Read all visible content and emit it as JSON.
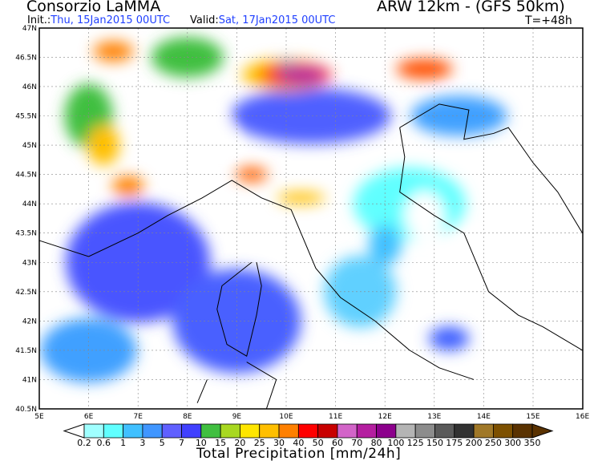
{
  "header": {
    "title": "Consorzio LaMMA",
    "model": "ARW 12km - (GFS 50km)",
    "init_label": "Init.:",
    "init_value": "Thu, 15Jan2015 00UTC",
    "valid_label": "Valid:",
    "valid_value": "Sat, 17Jan2015 00UTC",
    "timestep": "T=+48h"
  },
  "map": {
    "lon_ticks": [
      "5E",
      "6E",
      "7E",
      "8E",
      "9E",
      "10E",
      "11E",
      "12E",
      "13E",
      "14E",
      "15E",
      "16E"
    ],
    "lat_ticks": [
      "47N",
      "46.5N",
      "46N",
      "45.5N",
      "45N",
      "44.5N",
      "44N",
      "43.5N",
      "43N",
      "42.5N",
      "42N",
      "41.5N",
      "41N",
      "40.5N"
    ]
  },
  "colorbar": {
    "title": "Total Precipitation [mm/24h]",
    "labels": [
      "0.2",
      "0.6",
      "1",
      "3",
      "5",
      "7",
      "10",
      "15",
      "20",
      "25",
      "30",
      "40",
      "50",
      "60",
      "70",
      "80",
      "100",
      "125",
      "150",
      "175",
      "200",
      "250",
      "300",
      "350"
    ],
    "colors": [
      "#a0ffff",
      "#60ffff",
      "#40c0ff",
      "#4096ff",
      "#6060ff",
      "#4040ff",
      "#40bf40",
      "#a8d820",
      "#ffe600",
      "#ffbf00",
      "#ff8000",
      "#ff0000",
      "#c80000",
      "#d264c8",
      "#b41ea0",
      "#8c008c",
      "#b4b4b4",
      "#8c8c8c",
      "#5a5a5a",
      "#323232",
      "#a07828",
      "#7d5000",
      "#5a3200"
    ],
    "over_color": "#5a3200",
    "under_color": "#ffffff"
  }
}
